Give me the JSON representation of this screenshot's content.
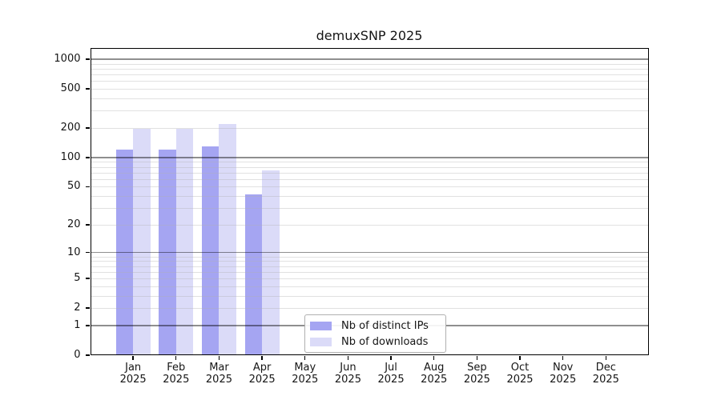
{
  "figure": {
    "title": "demuxSNP 2025"
  },
  "chart_data": {
    "type": "bar",
    "title": "demuxSNP 2025",
    "x": {
      "categories": [
        "Jan",
        "Feb",
        "Mar",
        "Apr",
        "May",
        "Jun",
        "Jul",
        "Aug",
        "Sep",
        "Oct",
        "Nov",
        "Dec"
      ],
      "year_label": "2025"
    },
    "series": [
      {
        "name": "Nb of distinct IPs",
        "color": "#a5a5f2",
        "values": [
          120,
          120,
          130,
          42,
          0,
          0,
          0,
          0,
          0,
          0,
          0,
          0
        ]
      },
      {
        "name": "Nb of downloads",
        "color": "#dbdbf8",
        "values": [
          195,
          195,
          220,
          73,
          0,
          0,
          0,
          0,
          0,
          0,
          0,
          0
        ]
      }
    ],
    "y_axis": {
      "scale": "log10(value+1)",
      "ticks": [
        0,
        1,
        2,
        5,
        10,
        20,
        50,
        100,
        200,
        500,
        1000
      ],
      "range": [
        0,
        1300
      ]
    },
    "grid": "on",
    "legend": {
      "position": "inside lower-center"
    }
  }
}
